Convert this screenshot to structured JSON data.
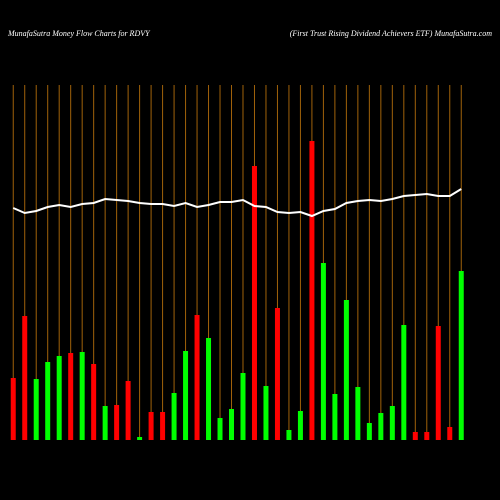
{
  "chart_data": {
    "type": "bar",
    "title": "MunafaSutra  Money Flow  Charts for RDVY",
    "subtitle": "(First Trust Rising Dividend Achievers ETF) MunafaSutra.com",
    "categories": [
      null,
      null,
      null,
      null,
      null,
      null,
      null,
      null,
      null,
      null,
      null,
      null,
      null,
      null,
      null,
      null,
      null,
      null,
      null,
      null,
      null,
      null,
      null,
      null,
      null,
      null,
      null,
      null,
      null,
      null,
      null,
      null,
      null,
      null,
      null,
      null,
      null,
      null,
      null,
      null
    ],
    "ylim": [
      0,
      360
    ],
    "grid": true,
    "grid_color": "#a0620a",
    "background": "#000000",
    "series": [
      {
        "type": "bar",
        "values": [
          62,
          124,
          61,
          78,
          84,
          87,
          88,
          76,
          34,
          35,
          59,
          3,
          28,
          28,
          47,
          89,
          125,
          102,
          22,
          31,
          67,
          274,
          54,
          132,
          10,
          29,
          299,
          177,
          46,
          140,
          53,
          17,
          27,
          34,
          115,
          8,
          8,
          114,
          13,
          169
        ],
        "colors": [
          "#ff0000",
          "#ff0000",
          "#00ff00",
          "#00ff00",
          "#00ff00",
          "#ff0000",
          "#00ff00",
          "#ff0000",
          "#00ff00",
          "#ff0000",
          "#ff0000",
          "#00ff00",
          "#ff0000",
          "#ff0000",
          "#00ff00",
          "#00ff00",
          "#ff0000",
          "#00ff00",
          "#00ff00",
          "#00ff00",
          "#00ff00",
          "#ff0000",
          "#00ff00",
          "#ff0000",
          "#00ff00",
          "#00ff00",
          "#ff0000",
          "#00ff00",
          "#00ff00",
          "#00ff00",
          "#00ff00",
          "#00ff00",
          "#00ff00",
          "#00ff00",
          "#00ff00",
          "#ff0000",
          "#ff0000",
          "#ff0000",
          "#ff0000",
          "#00ff00"
        ]
      },
      {
        "type": "line",
        "color": "#ffffff",
        "values": [
          232,
          227,
          229,
          233,
          235,
          233,
          236,
          237,
          241,
          240,
          239,
          237,
          236,
          236,
          234,
          237,
          233,
          235,
          238,
          238,
          240,
          234,
          233,
          228,
          227,
          228,
          224,
          229,
          231,
          237,
          239,
          240,
          239,
          241,
          244,
          245,
          246,
          244,
          244,
          251
        ]
      }
    ]
  }
}
